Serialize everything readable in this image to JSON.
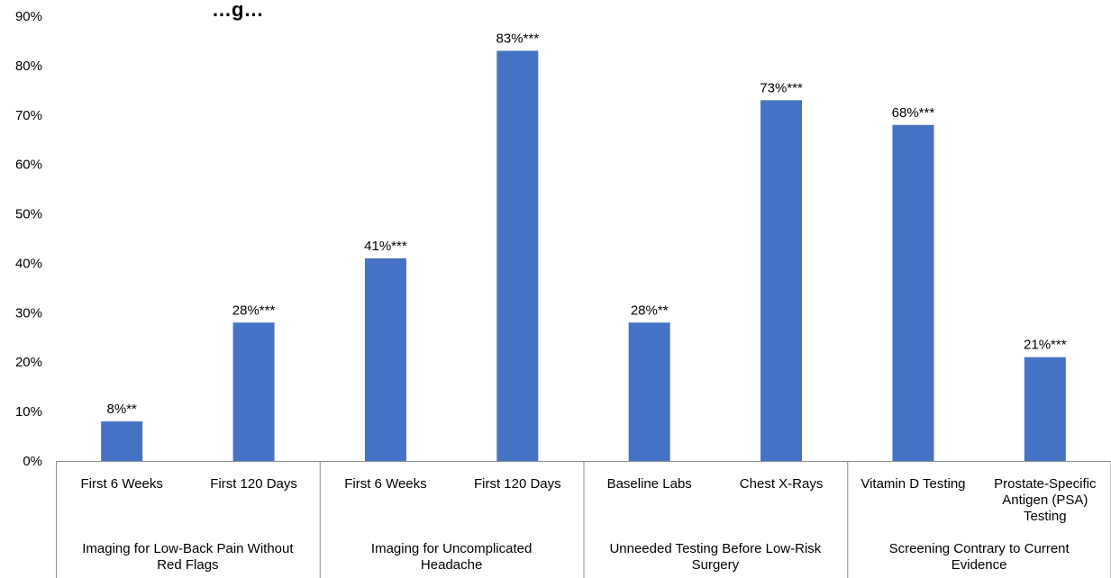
{
  "chart_data": {
    "type": "bar",
    "title": "…g…",
    "ylim": [
      0,
      90
    ],
    "y_ticks": [
      "0%",
      "10%",
      "20%",
      "30%",
      "40%",
      "50%",
      "60%",
      "70%",
      "80%",
      "90%"
    ],
    "grid": false,
    "legend": "none",
    "bar_color": "#4472C4",
    "categories": [
      "First 6 Weeks",
      "First 120 Days",
      "First 6 Weeks",
      "First 120 Days",
      "Baseline Labs",
      "Chest X-Rays",
      "Vitamin D Testing",
      "Prostate-Specific Antigen (PSA) Testing"
    ],
    "category_lines": [
      [
        "First 6 Weeks"
      ],
      [
        "First 120 Days"
      ],
      [
        "First 6 Weeks"
      ],
      [
        "First 120 Days"
      ],
      [
        "Baseline Labs"
      ],
      [
        "Chest X-Rays"
      ],
      [
        "Vitamin D Testing"
      ],
      [
        "Prostate-Specific",
        "Antigen (PSA)",
        "Testing"
      ]
    ],
    "values": [
      8,
      28,
      41,
      83,
      28,
      73,
      68,
      21
    ],
    "data_labels": [
      "8%**",
      "28%***",
      "41%***",
      "83%***",
      "28%**",
      "73%***",
      "68%***",
      "21%***"
    ],
    "groups": [
      {
        "label_lines": [
          "Imaging for Low-Back Pain Without",
          "Red Flags"
        ],
        "span": 2
      },
      {
        "label_lines": [
          "Imaging for Uncomplicated",
          "Headache"
        ],
        "span": 2
      },
      {
        "label_lines": [
          "Unneeded Testing Before Low-Risk",
          "Surgery"
        ],
        "span": 2
      },
      {
        "label_lines": [
          "Screening Contrary to Current",
          "Evidence"
        ],
        "span": 2
      }
    ]
  }
}
